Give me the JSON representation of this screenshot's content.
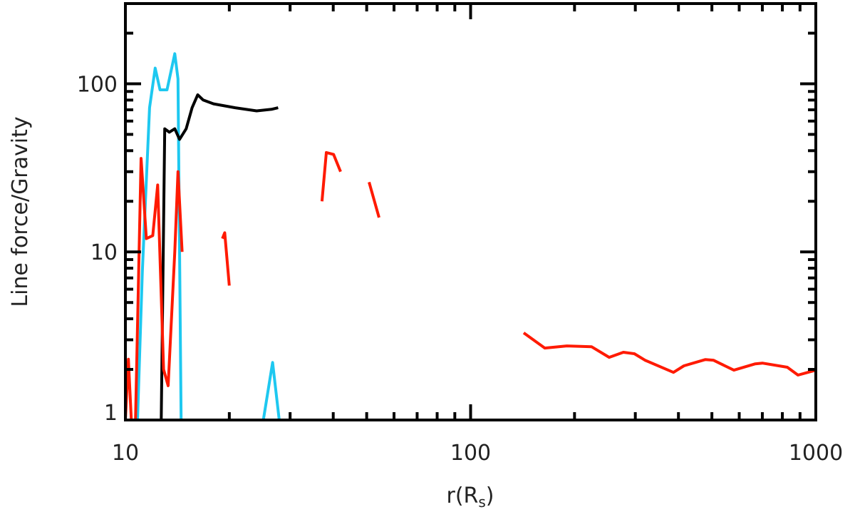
{
  "chart_data": {
    "type": "line",
    "title": "",
    "xlabel": "r(R",
    "xlabel_sub": "s",
    "xlabel_close": ")",
    "ylabel": "Line force/Gravity",
    "xscale": "log",
    "yscale": "log",
    "xlim": [
      10,
      1000
    ],
    "ylim": [
      1,
      300
    ],
    "xticks": [
      {
        "value": 10,
        "label": "10"
      },
      {
        "value": 100,
        "label": "100"
      },
      {
        "value": 1000,
        "label": "1000"
      }
    ],
    "yticks": [
      {
        "value": 1,
        "label": "1"
      },
      {
        "value": 10,
        "label": "10"
      },
      {
        "value": 100,
        "label": "100"
      }
    ],
    "grid": false,
    "colors": {
      "black": "#000000",
      "cyan": "#1ec8f0",
      "red": "#ff1a00"
    },
    "series": [
      {
        "color": "cyan",
        "segments": [
          [
            [
              10.84,
              1
            ],
            [
              11.2,
              7.7
            ],
            [
              11.75,
              72
            ],
            [
              12.2,
              124
            ],
            [
              12.6,
              92
            ],
            [
              13.2,
              92
            ],
            [
              13.9,
              151
            ],
            [
              14.2,
              107
            ],
            [
              14.5,
              1
            ]
          ],
          [
            [
              25.1,
              1
            ],
            [
              26.7,
              2.2
            ],
            [
              27.9,
              1
            ]
          ]
        ]
      },
      {
        "color": "black",
        "segments": [
          [
            [
              12.7,
              1
            ],
            [
              13.0,
              54
            ],
            [
              13.4,
              51.5
            ],
            [
              13.9,
              54
            ],
            [
              14.35,
              46.7
            ],
            [
              15.0,
              54
            ],
            [
              15.6,
              72
            ],
            [
              16.2,
              86
            ],
            [
              16.8,
              80
            ],
            [
              18.0,
              76
            ],
            [
              20.8,
              72
            ],
            [
              24.0,
              69
            ],
            [
              26.5,
              70.5
            ],
            [
              27.7,
              72
            ]
          ]
        ]
      },
      {
        "color": "red",
        "segments": [
          [
            [
              10.0,
              1
            ],
            [
              10.2,
              2.3
            ],
            [
              10.4,
              1
            ]
          ],
          [
            [
              10.7,
              1
            ],
            [
              11.1,
              36
            ],
            [
              11.5,
              12
            ],
            [
              12.0,
              12.5
            ],
            [
              12.4,
              25
            ],
            [
              12.9,
              2
            ],
            [
              13.3,
              1.6
            ],
            [
              13.9,
              10
            ],
            [
              14.2,
              30
            ],
            [
              14.6,
              10
            ]
          ],
          [
            [
              19.1,
              12
            ],
            [
              19.4,
              13
            ],
            [
              20.0,
              6.3
            ]
          ],
          [
            [
              37.1,
              20
            ],
            [
              38.2,
              39
            ],
            [
              40.1,
              38
            ],
            [
              42.0,
              30
            ]
          ],
          [
            [
              50.8,
              26
            ],
            [
              54.3,
              16
            ]
          ],
          [
            [
              142.5,
              3.3
            ],
            [
              164,
              2.68
            ],
            [
              190,
              2.76
            ],
            [
              224,
              2.73
            ],
            [
              252,
              2.36
            ],
            [
              277,
              2.53
            ],
            [
              298,
              2.48
            ],
            [
              320,
              2.27
            ],
            [
              387,
              1.92
            ],
            [
              415,
              2.1
            ],
            [
              479,
              2.29
            ],
            [
              505,
              2.27
            ],
            [
              579,
              1.98
            ],
            [
              668,
              2.16
            ],
            [
              700,
              2.18
            ],
            [
              827,
              2.06
            ],
            [
              888,
              1.85
            ],
            [
              1000,
              1.98
            ]
          ]
        ]
      }
    ]
  }
}
